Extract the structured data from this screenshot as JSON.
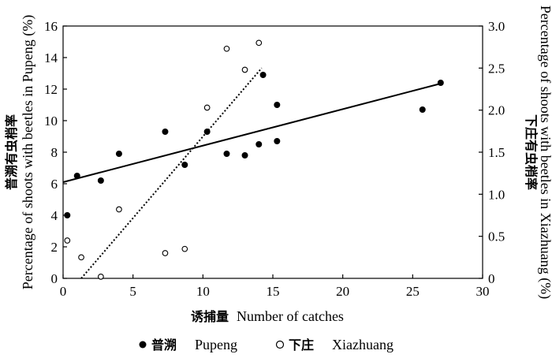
{
  "chart_data": {
    "type": "scatter",
    "x_axis": {
      "label_cn": "诱捕量",
      "label_en": "Number of catches",
      "range": [
        0,
        30
      ],
      "ticks": [
        "0",
        "5",
        "10",
        "15",
        "20",
        "25",
        "30"
      ]
    },
    "y_left_axis": {
      "label_cn": "普溯有虫梢率",
      "label_en": "Percentage of shoots with beetles in Pupeng (%)",
      "range": [
        0,
        16
      ],
      "ticks": [
        "0",
        "2",
        "4",
        "6",
        "8",
        "10",
        "12",
        "14",
        "16"
      ]
    },
    "y_right_axis": {
      "label_cn": "下庄有虫梢率",
      "label_en": "Percentage of shoots with beetles in Xiazhuang (%)",
      "range": [
        0,
        3
      ],
      "ticks": [
        "0",
        "0.5",
        "1.0",
        "1.5",
        "2.0",
        "2.5",
        "3.0"
      ]
    },
    "series": [
      {
        "name_cn": "普溯",
        "name_en": "Pupeng",
        "marker": "filled-circle",
        "axis": "left",
        "points": [
          [
            0.3,
            4.0
          ],
          [
            1.0,
            6.5
          ],
          [
            2.7,
            6.2
          ],
          [
            4.0,
            7.9
          ],
          [
            7.3,
            9.3
          ],
          [
            8.7,
            7.2
          ],
          [
            10.3,
            9.3
          ],
          [
            11.7,
            7.9
          ],
          [
            13.0,
            7.8
          ],
          [
            14.0,
            8.5
          ],
          [
            14.3,
            12.9
          ],
          [
            15.3,
            8.7
          ],
          [
            15.3,
            11.0
          ],
          [
            25.7,
            10.7
          ],
          [
            27.0,
            12.4
          ]
        ],
        "trend": {
          "x": [
            0,
            27
          ],
          "y": [
            6.1,
            12.35
          ],
          "style": "solid"
        }
      },
      {
        "name_cn": "下庄",
        "name_en": "Xiazhuang",
        "marker": "open-circle",
        "axis": "right",
        "points": [
          [
            0.3,
            0.45
          ],
          [
            1.3,
            0.25
          ],
          [
            2.7,
            0.02
          ],
          [
            4.0,
            0.82
          ],
          [
            7.3,
            0.3
          ],
          [
            8.7,
            0.35
          ],
          [
            10.3,
            2.03
          ],
          [
            11.7,
            2.73
          ],
          [
            13.0,
            2.48
          ],
          [
            14.0,
            2.8
          ]
        ],
        "trend": {
          "x": [
            1.3,
            14.2
          ],
          "y": [
            0.0,
            2.5
          ],
          "style": "dotted"
        }
      }
    ],
    "legend": {
      "position": "bottom"
    }
  }
}
